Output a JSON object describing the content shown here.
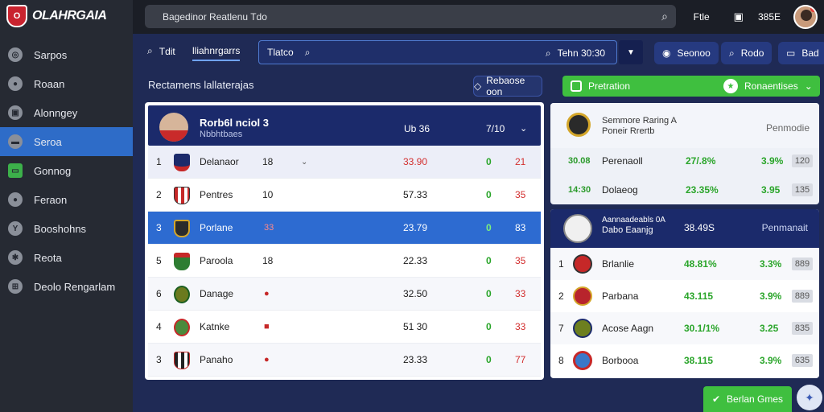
{
  "app": {
    "name": "OLAHRGAIA"
  },
  "sidebar": {
    "items": [
      {
        "label": "Sarpos",
        "icon": "globe-icon"
      },
      {
        "label": "Roaan",
        "icon": "ball-icon"
      },
      {
        "label": "Alonngey",
        "icon": "lock-icon"
      },
      {
        "label": "Seroa",
        "icon": "car-icon",
        "active": true
      },
      {
        "label": "Gonnog",
        "icon": "screen-icon"
      },
      {
        "label": "Feraon",
        "icon": "ball-icon"
      },
      {
        "label": "Booshohns",
        "icon": "trophy-icon"
      },
      {
        "label": "Reota",
        "icon": "gear-icon"
      },
      {
        "label": "Deolo Rengarlam",
        "icon": "grid-icon"
      }
    ]
  },
  "topbar": {
    "search_value": "Bagedinor Reatlenu Tdo",
    "link": "Ftle",
    "count": "385E"
  },
  "subbar": {
    "tab1": "Tdit",
    "tab2": "lliahnrgarrs",
    "search_label": "Tlatco",
    "search_right": "Tehn 30:30",
    "pill1": "Seonoo",
    "pill2": "Rodo",
    "pill3": "Bad"
  },
  "main": {
    "title": "Rectamens lallaterajas",
    "outline_button": "Rebaose oon",
    "green_bar_left": "Pretration",
    "green_bar_right": "Ronaentises"
  },
  "table": {
    "head_title": "Rorb6l nciol 3",
    "head_sub": "Nbbhtbaes",
    "head_c1": "Ub 36",
    "head_c2": "7/10",
    "rows": [
      {
        "rank": "1",
        "team": "Delanaor",
        "pts": "18",
        "v1": "33.90",
        "v2": "0",
        "v3": "21",
        "crest": "#1b2a6b",
        "style": "first"
      },
      {
        "rank": "2",
        "team": "Pentres",
        "pts": "10",
        "v1": "57.33",
        "v2": "0",
        "v3": "35",
        "crest": "#c62828"
      },
      {
        "rank": "3",
        "team": "Porlane",
        "mid": "33",
        "v1": "23.79",
        "v2": "0",
        "v3": "83",
        "crest": "#2b2b2b",
        "style": "highlight"
      },
      {
        "rank": "5",
        "team": "Paroola",
        "pts": "18",
        "v1": "22.33",
        "v2": "0",
        "v3": "35",
        "crest": "#2e7d32"
      },
      {
        "rank": "6",
        "team": "Danage",
        "mid": "●",
        "v1": "32.50",
        "v2": "0",
        "v3": "33",
        "crest": "#6b7a1e"
      },
      {
        "rank": "4",
        "team": "Katnke",
        "mid": "■",
        "v1": "51 30",
        "v2": "0",
        "v3": "33",
        "crest": "#4a8a3c"
      },
      {
        "rank": "3",
        "team": "Panaho",
        "mid": "●",
        "v1": "23.33",
        "v2": "0",
        "v3": "77",
        "crest": "#333333"
      }
    ]
  },
  "right_top": {
    "t1": "Semmore Raring A",
    "t2": "Poneir Rrertb",
    "label": "Penmodie",
    "rows": [
      {
        "code": "30.08",
        "name": "Perenaoll",
        "pct": "27/.8%",
        "p2": "3.9%",
        "box": "120"
      },
      {
        "code": "14:30",
        "name": "Dolaeog",
        "pct": "23.35%",
        "p2": "3.95",
        "box": "135"
      }
    ]
  },
  "right_bottom": {
    "t1": "Aannaadeabls 0A",
    "t2": "Dabo Eaanjg",
    "c1": "38.49S",
    "label": "Penmanait",
    "rows": [
      {
        "rank": "1",
        "name": "Brlanlie",
        "pct": "48.81%",
        "p2": "3.3%",
        "box": "889",
        "crest": "#c62828",
        "pink": true
      },
      {
        "rank": "2",
        "name": "Parbana",
        "pct": "43.115",
        "p2": "3.9%",
        "box": "889",
        "crest": "#b8242c"
      },
      {
        "rank": "7",
        "name": "Acose Aagn",
        "pct": "30.1/1%",
        "p2": "3.25",
        "box": "835",
        "crest": "#6d7f1f"
      },
      {
        "rank": "8",
        "name": "Borbooa",
        "pct": "38.115",
        "p2": "3.9%",
        "box": "635",
        "crest": "#3a78c8"
      }
    ]
  },
  "footer": {
    "button": "Berlan Gmes"
  }
}
